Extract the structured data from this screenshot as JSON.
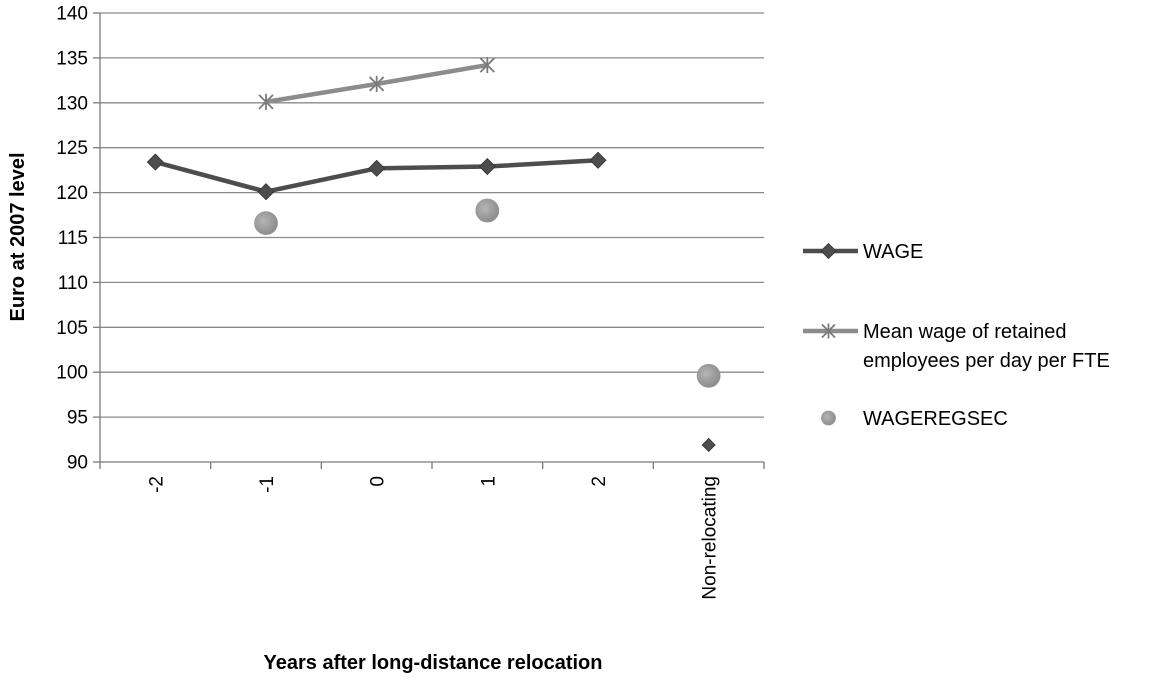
{
  "chart_data": {
    "type": "line",
    "title": "",
    "xlabel": "Years after long-distance relocation",
    "ylabel": "Euro at 2007 level",
    "categories": [
      "-2",
      "-1",
      "0",
      "1",
      "2",
      "Non-relocating"
    ],
    "ylim": [
      90,
      140
    ],
    "yticks": [
      90,
      95,
      100,
      105,
      110,
      115,
      120,
      125,
      130,
      135,
      140
    ],
    "grid": true,
    "legend_position": "right",
    "series": [
      {
        "name": "WAGE",
        "marker": "diamond",
        "line": true,
        "color": "#4d4d4d",
        "values": [
          123.4,
          120.1,
          122.7,
          122.9,
          123.6,
          null
        ]
      },
      {
        "name": "Mean wage of retained employees per day per FTE",
        "marker": "asterisk",
        "line": true,
        "color": "#8c8c8c",
        "values": [
          null,
          130.1,
          132.1,
          134.2,
          null,
          null
        ]
      },
      {
        "name": "WAGEREGSEC",
        "marker": "circle",
        "line": false,
        "color": "#8c8c8c",
        "values": [
          null,
          116.6,
          null,
          118.0,
          null,
          99.6
        ]
      },
      {
        "name": "",
        "marker": "diamond-small",
        "line": false,
        "color": "#4d4d4d",
        "values": [
          null,
          null,
          null,
          null,
          null,
          91.9
        ]
      }
    ]
  },
  "legend": [
    {
      "lines": [
        "WAGE"
      ]
    },
    {
      "lines": [
        "Mean wage of retained",
        "employees per day per FTE"
      ]
    },
    {
      "lines": [
        "WAGEREGSEC"
      ]
    }
  ]
}
